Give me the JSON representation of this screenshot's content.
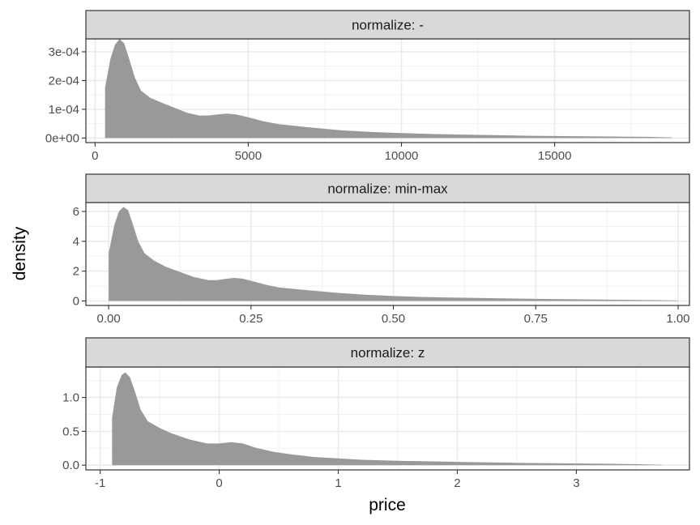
{
  "chart_data": {
    "type": "area",
    "xlabel": "price",
    "ylabel": "density",
    "fill_color": "#999999",
    "strip_fill": "#d9d9d9",
    "grid": true,
    "panels": [
      {
        "strip": "normalize: -",
        "xlim": [
          -300,
          19400
        ],
        "ylim": [
          -1.6e-05,
          0.000345
        ],
        "xticks": [
          0,
          5000,
          10000,
          15000
        ],
        "xtick_labels": [
          "0",
          "5000",
          "10000",
          "15000"
        ],
        "yticks": [
          0,
          0.0001,
          0.0002,
          0.0003
        ],
        "ytick_labels": [
          "0e+00",
          "1e-04",
          "2e-04",
          "3e-04"
        ],
        "x": [
          326,
          500,
          650,
          800,
          950,
          1100,
          1300,
          1500,
          1800,
          2200,
          2600,
          3000,
          3400,
          3700,
          4000,
          4300,
          4600,
          5000,
          5500,
          6000,
          7000,
          8000,
          9000,
          10000,
          11000,
          12000,
          13000,
          14000,
          15000,
          16000,
          17000,
          18000,
          18823
        ],
        "y": [
          0.000175,
          0.000275,
          0.000325,
          0.000345,
          0.00033,
          0.00028,
          0.00021,
          0.000165,
          0.00014,
          0.000122,
          0.000105,
          8.8e-05,
          7.8e-05,
          7.8e-05,
          8.2e-05,
          8.5e-05,
          8.2e-05,
          7.2e-05,
          5.8e-05,
          4.8e-05,
          3.7e-05,
          2.7e-05,
          2.1e-05,
          1.7e-05,
          1.4e-05,
          1.2e-05,
          1e-05,
          8e-06,
          7e-06,
          6e-06,
          5e-06,
          4e-06,
          2e-06
        ]
      },
      {
        "strip": "normalize: min-max",
        "xlim": [
          -0.04,
          1.02
        ],
        "ylim": [
          -0.3,
          6.6
        ],
        "xticks": [
          0,
          0.25,
          0.5,
          0.75,
          1
        ],
        "xtick_labels": [
          "0.00",
          "0.25",
          "0.50",
          "0.75",
          "1.00"
        ],
        "yticks": [
          0,
          2,
          4,
          6
        ],
        "ytick_labels": [
          "0",
          "2",
          "4",
          "6"
        ],
        "x": [
          0,
          0.01,
          0.018,
          0.026,
          0.034,
          0.042,
          0.052,
          0.063,
          0.08,
          0.1,
          0.125,
          0.15,
          0.175,
          0.19,
          0.205,
          0.22,
          0.235,
          0.255,
          0.28,
          0.3,
          0.35,
          0.4,
          0.45,
          0.5,
          0.55,
          0.6,
          0.65,
          0.7,
          0.75,
          0.8,
          0.85,
          0.9,
          0.95,
          1.0
        ],
        "y": [
          3.2,
          5.1,
          6.0,
          6.3,
          6.1,
          5.2,
          4.0,
          3.2,
          2.7,
          2.3,
          1.95,
          1.6,
          1.4,
          1.4,
          1.48,
          1.55,
          1.5,
          1.3,
          1.05,
          0.9,
          0.72,
          0.55,
          0.42,
          0.33,
          0.27,
          0.23,
          0.2,
          0.17,
          0.14,
          0.12,
          0.1,
          0.08,
          0.06,
          0.03
        ]
      },
      {
        "strip": "normalize: z",
        "xlim": [
          -1.12,
          3.95
        ],
        "ylim": [
          -0.07,
          1.45
        ],
        "xticks": [
          -1,
          0,
          1,
          2,
          3
        ],
        "xtick_labels": [
          "-1",
          "0",
          "1",
          "2",
          "3"
        ],
        "yticks": [
          0,
          0.5,
          1
        ],
        "ytick_labels": [
          "0.0",
          "0.5",
          "1.0"
        ],
        "x": [
          -0.9,
          -0.86,
          -0.82,
          -0.79,
          -0.75,
          -0.71,
          -0.66,
          -0.6,
          -0.5,
          -0.4,
          -0.25,
          -0.1,
          0,
          0.1,
          0.2,
          0.3,
          0.45,
          0.6,
          0.8,
          1.0,
          1.2,
          1.5,
          1.8,
          2.1,
          2.4,
          2.7,
          3.0,
          3.3,
          3.5,
          3.72
        ],
        "y": [
          0.7,
          1.15,
          1.33,
          1.37,
          1.3,
          1.1,
          0.82,
          0.65,
          0.55,
          0.47,
          0.38,
          0.32,
          0.32,
          0.34,
          0.32,
          0.26,
          0.2,
          0.16,
          0.12,
          0.1,
          0.08,
          0.065,
          0.055,
          0.045,
          0.037,
          0.03,
          0.025,
          0.02,
          0.015,
          0.005
        ]
      }
    ]
  }
}
